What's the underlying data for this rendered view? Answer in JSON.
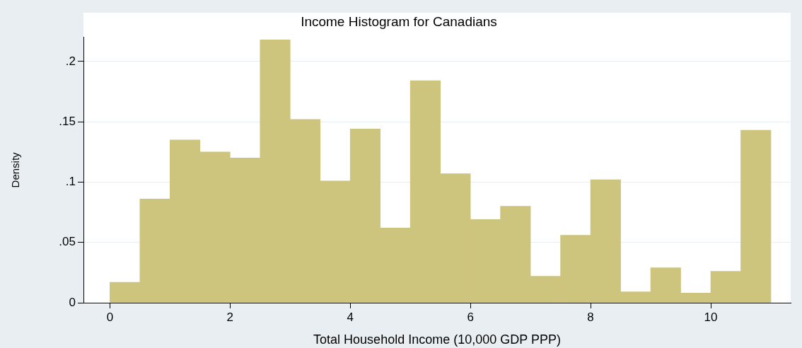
{
  "chart_data": {
    "type": "histogram",
    "title": "Income Histogram for Canadians",
    "xlabel": "Total Household Income (10,000 GDP PPP)",
    "ylabel": "Density",
    "bins": [
      0,
      0.5,
      1,
      1.5,
      2,
      2.5,
      3,
      3.5,
      4,
      4.5,
      5,
      5.5,
      6,
      6.5,
      7,
      7.5,
      8,
      8.5,
      9,
      9.5,
      10,
      10.5,
      11
    ],
    "values": [
      0.017,
      0.086,
      0.135,
      0.125,
      0.12,
      0.218,
      0.152,
      0.101,
      0.144,
      0.062,
      0.184,
      0.107,
      0.069,
      0.08,
      0.022,
      0.056,
      0.102,
      0.009,
      0.029,
      0.008,
      0.026,
      0.143
    ],
    "color": "#cdc47e",
    "xlim": [
      -0.44,
      11.33
    ],
    "xticks": [
      0,
      2,
      4,
      6,
      8,
      10
    ],
    "ylim": [
      0,
      0.22
    ],
    "yticks": [
      0,
      {
        "value": 0.05,
        "label": ".05"
      },
      {
        "value": 0.1,
        "label": ".1"
      },
      {
        "value": 0.15,
        "label": ".15"
      },
      {
        "value": 0.2,
        "label": ".2"
      }
    ],
    "grid": "y"
  }
}
